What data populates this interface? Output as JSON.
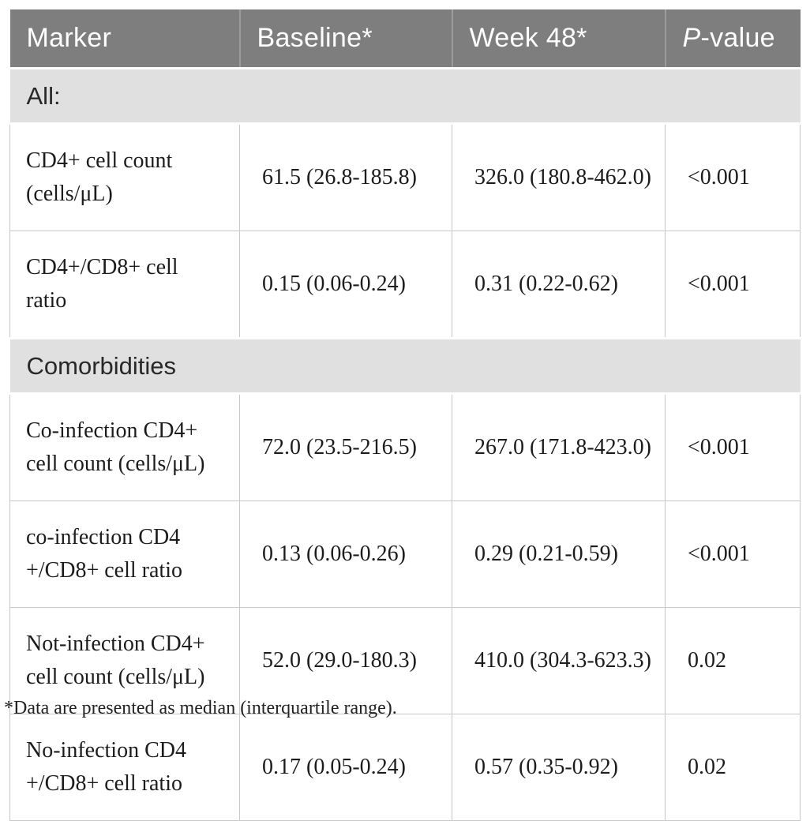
{
  "table": {
    "header": {
      "marker": "Marker",
      "baseline": "Baseline*",
      "week48": "Week 48*",
      "pvalue_prefix": "P",
      "pvalue_suffix": "-value"
    },
    "sections": {
      "all": "All:",
      "comorbidities": "Comorbidities"
    },
    "rows": [
      {
        "marker": "CD4+ cell count (cells/μL)",
        "baseline": "61.5 (26.8-185.8)",
        "week48": "326.0 (180.8-462.0)",
        "pvalue": "<0.001"
      },
      {
        "marker": "CD4+/CD8+ cell ratio",
        "baseline": "0.15 (0.06-0.24)",
        "week48": "0.31 (0.22-0.62)",
        "pvalue": "<0.001"
      },
      {
        "marker": "Co-infection CD4+ cell count (cells/μL)",
        "baseline": "72.0 (23.5-216.5)",
        "week48": "267.0 (171.8-423.0)",
        "pvalue": "<0.001"
      },
      {
        "marker": "co-infection CD4 +/CD8+ cell ratio",
        "baseline": "0.13 (0.06-0.26)",
        "week48": "0.29 (0.21-0.59)",
        "pvalue": "<0.001"
      },
      {
        "marker": "Not-infection CD4+ cell count (cells/μL)",
        "baseline": "52.0 (29.0-180.3)",
        "week48": "410.0 (304.3-623.3)",
        "pvalue": "0.02"
      },
      {
        "marker": "No-infection CD4 +/CD8+ cell ratio",
        "baseline": "0.17 (0.05-0.24)",
        "week48": "0.57 (0.35-0.92)",
        "pvalue": "0.02"
      }
    ],
    "footnote": "*Data are presented as median (interquartile range).",
    "colors": {
      "header_bg": "#7e7e7e",
      "header_text": "#ffffff",
      "section_bg": "#e0e0e0",
      "border": "#c8c8c8",
      "body_text": "#1c1c1c"
    }
  }
}
